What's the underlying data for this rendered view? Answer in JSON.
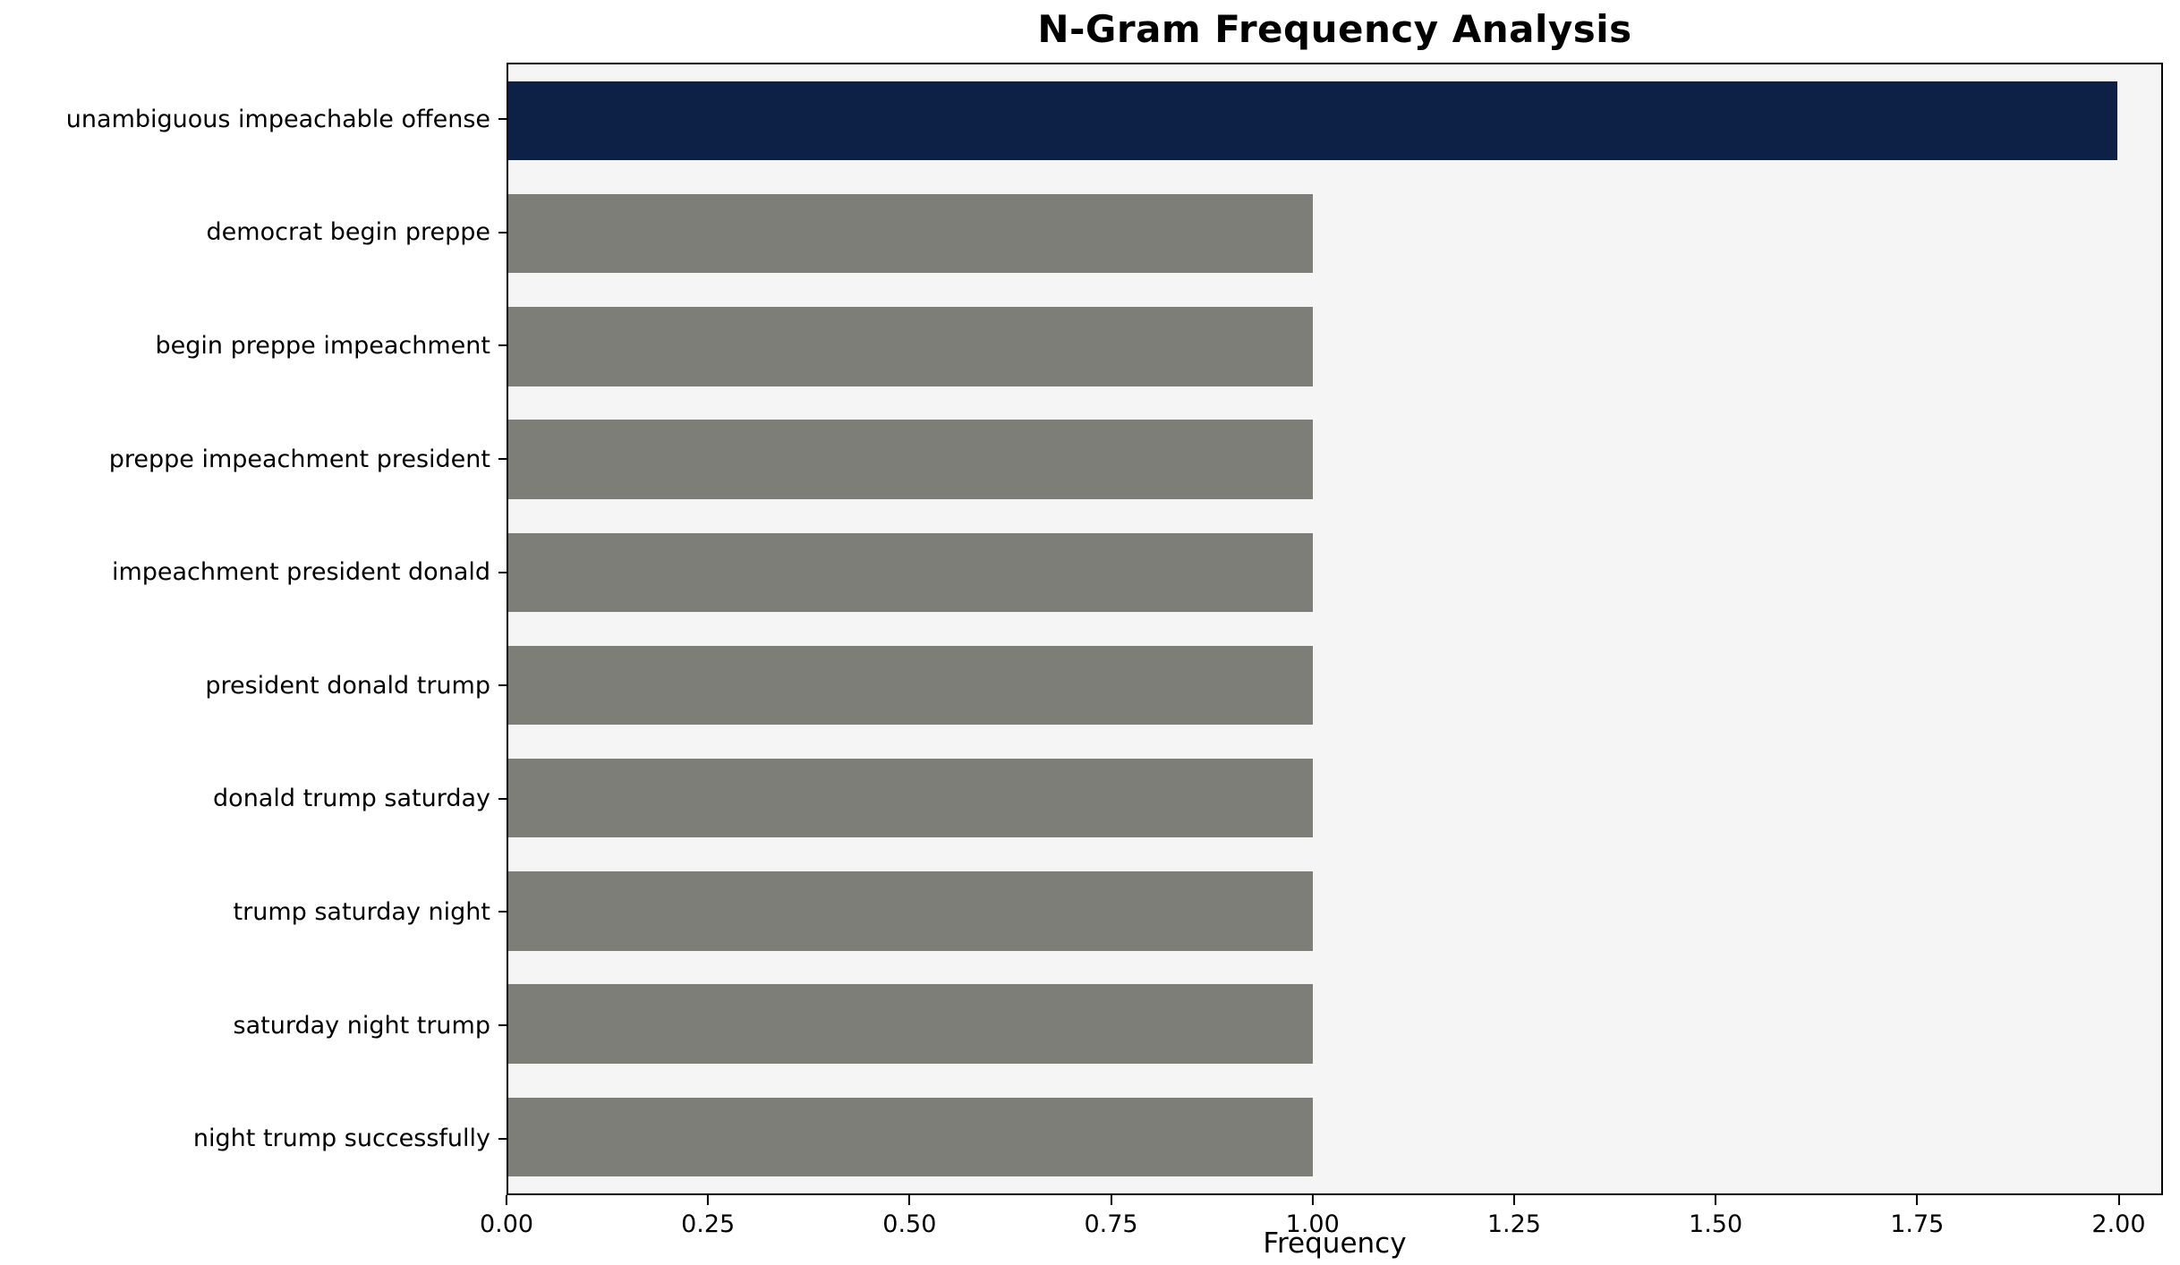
{
  "chart_data": {
    "type": "bar",
    "orientation": "horizontal",
    "title": "N-Gram Frequency Analysis",
    "xlabel": "Frequency",
    "ylabel": "",
    "categories": [
      "unambiguous impeachable offense",
      "democrat begin preppe",
      "begin preppe impeachment",
      "preppe impeachment president",
      "impeachment president donald",
      "president donald trump",
      "donald trump saturday",
      "trump saturday night",
      "saturday night trump",
      "night trump successfully"
    ],
    "values": [
      2,
      1,
      1,
      1,
      1,
      1,
      1,
      1,
      1,
      1
    ],
    "xlim": [
      0,
      2.055
    ],
    "xticks": [
      0.0,
      0.25,
      0.5,
      0.75,
      1.0,
      1.25,
      1.5,
      1.75,
      2.0
    ],
    "xtick_labels": [
      "0.00",
      "0.25",
      "0.50",
      "0.75",
      "1.00",
      "1.25",
      "1.50",
      "1.75",
      "2.00"
    ],
    "grid": false,
    "legend": null,
    "colors": {
      "highlight_bar": "#0c2145",
      "default_bar": "#7e7e79",
      "plot_background": "#f5f5f5",
      "figure_background": "#ffffff",
      "axis_border": "#000000"
    },
    "bar_color_assignment": [
      "highlight_bar",
      "default_bar",
      "default_bar",
      "default_bar",
      "default_bar",
      "default_bar",
      "default_bar",
      "default_bar",
      "default_bar",
      "default_bar"
    ]
  }
}
